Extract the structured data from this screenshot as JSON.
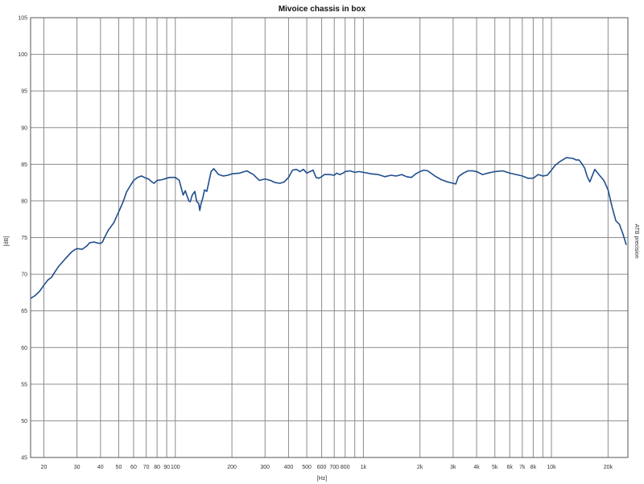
{
  "chart_data": {
    "type": "line",
    "title": "Mivoice chassis in box",
    "xlabel": "[Hz]",
    "ylabel": "[dB]",
    "side_label": "ATB precision",
    "x_scale": "log",
    "xlim": [
      17,
      25500
    ],
    "ylim": [
      45,
      105
    ],
    "grid": true,
    "line_color": "#1f4e8c",
    "x_ticks": [
      {
        "value": 20,
        "label": "20"
      },
      {
        "value": 30,
        "label": "30"
      },
      {
        "value": 40,
        "label": "40"
      },
      {
        "value": 50,
        "label": "50"
      },
      {
        "value": 60,
        "label": "60"
      },
      {
        "value": 70,
        "label": "70"
      },
      {
        "value": 80,
        "label": "80"
      },
      {
        "value": 90,
        "label": "90"
      },
      {
        "value": 100,
        "label": "100"
      },
      {
        "value": 200,
        "label": "200"
      },
      {
        "value": 300,
        "label": "300"
      },
      {
        "value": 400,
        "label": "400"
      },
      {
        "value": 500,
        "label": "500"
      },
      {
        "value": 600,
        "label": "600"
      },
      {
        "value": 700,
        "label": "700"
      },
      {
        "value": 800,
        "label": "800"
      },
      {
        "value": 900,
        "label": ""
      },
      {
        "value": 1000,
        "label": "1k"
      },
      {
        "value": 2000,
        "label": "2k"
      },
      {
        "value": 3000,
        "label": "3k"
      },
      {
        "value": 4000,
        "label": "4k"
      },
      {
        "value": 5000,
        "label": "5k"
      },
      {
        "value": 6000,
        "label": "6k"
      },
      {
        "value": 7000,
        "label": "7k"
      },
      {
        "value": 8000,
        "label": "8k"
      },
      {
        "value": 9000,
        "label": ""
      },
      {
        "value": 10000,
        "label": "10k"
      },
      {
        "value": 20000,
        "label": "20k"
      }
    ],
    "y_ticks": [
      105,
      100,
      95,
      90,
      85,
      80,
      75,
      70,
      65,
      60,
      55,
      50,
      45
    ],
    "series": [
      {
        "x": [
          17,
          18,
          19,
          20,
          21,
          22,
          23,
          24,
          25,
          26,
          28,
          29,
          30,
          32,
          34,
          35,
          37,
          38,
          40,
          41,
          42,
          44,
          47,
          49,
          51,
          53,
          55,
          58,
          60,
          63,
          66,
          70,
          72,
          75,
          77,
          80,
          85,
          90,
          93,
          100,
          105,
          110,
          113,
          115,
          118,
          120,
          123,
          127,
          130,
          133,
          135,
          137,
          140,
          143,
          147,
          150,
          155,
          160,
          170,
          180,
          190,
          200,
          220,
          240,
          260,
          280,
          300,
          320,
          340,
          360,
          380,
          400,
          420,
          440,
          460,
          480,
          500,
          520,
          540,
          560,
          580,
          600,
          620,
          660,
          700,
          720,
          750,
          780,
          800,
          850,
          900,
          950,
          1000,
          1100,
          1200,
          1300,
          1400,
          1500,
          1600,
          1700,
          1800,
          1900,
          2000,
          2100,
          2200,
          2400,
          2600,
          2800,
          3000,
          3100,
          3200,
          3400,
          3600,
          3800,
          4000,
          4300,
          4600,
          5000,
          5500,
          6000,
          6500,
          7000,
          7500,
          8000,
          8500,
          9000,
          9500,
          10000,
          10500,
          11000,
          12000,
          13000,
          13500,
          14000,
          14500,
          15000,
          15500,
          16000,
          17000,
          18000,
          19000,
          20000,
          21000,
          22000,
          23000,
          24000,
          25000
        ],
        "y": [
          66.7,
          67.1,
          67.7,
          68.5,
          69.2,
          69.6,
          70.4,
          71.1,
          71.6,
          72.1,
          73.0,
          73.3,
          73.5,
          73.4,
          73.9,
          74.3,
          74.4,
          74.3,
          74.2,
          74.4,
          75.0,
          76.0,
          77.0,
          78.0,
          79.0,
          80.0,
          81.2,
          82.2,
          82.8,
          83.2,
          83.4,
          83.1,
          83.0,
          82.6,
          82.4,
          82.8,
          82.9,
          83.1,
          83.2,
          83.2,
          82.8,
          80.8,
          81.4,
          80.8,
          80.0,
          79.9,
          80.8,
          81.3,
          79.9,
          79.7,
          78.7,
          79.6,
          80.4,
          81.5,
          81.3,
          82.3,
          84.0,
          84.4,
          83.6,
          83.4,
          83.5,
          83.7,
          83.8,
          84.1,
          83.6,
          82.8,
          83.0,
          82.8,
          82.5,
          82.4,
          82.6,
          83.2,
          84.2,
          84.3,
          84.0,
          84.3,
          83.8,
          84.0,
          84.2,
          83.2,
          83.1,
          83.3,
          83.6,
          83.6,
          83.5,
          83.8,
          83.6,
          83.8,
          84.0,
          84.1,
          83.9,
          84.0,
          83.9,
          83.7,
          83.6,
          83.3,
          83.5,
          83.4,
          83.6,
          83.3,
          83.2,
          83.7,
          84.0,
          84.2,
          84.1,
          83.4,
          82.9,
          82.6,
          82.4,
          82.3,
          83.3,
          83.8,
          84.1,
          84.1,
          84.0,
          83.6,
          83.8,
          84.0,
          84.1,
          83.8,
          83.6,
          83.4,
          83.1,
          83.1,
          83.6,
          83.4,
          83.5,
          84.2,
          84.9,
          85.3,
          85.9,
          85.8,
          85.6,
          85.6,
          85.1,
          84.5,
          83.3,
          82.6,
          84.3,
          83.5,
          82.8,
          81.5,
          79.2,
          77.3,
          76.8,
          75.5,
          74.0
        ]
      }
    ]
  }
}
